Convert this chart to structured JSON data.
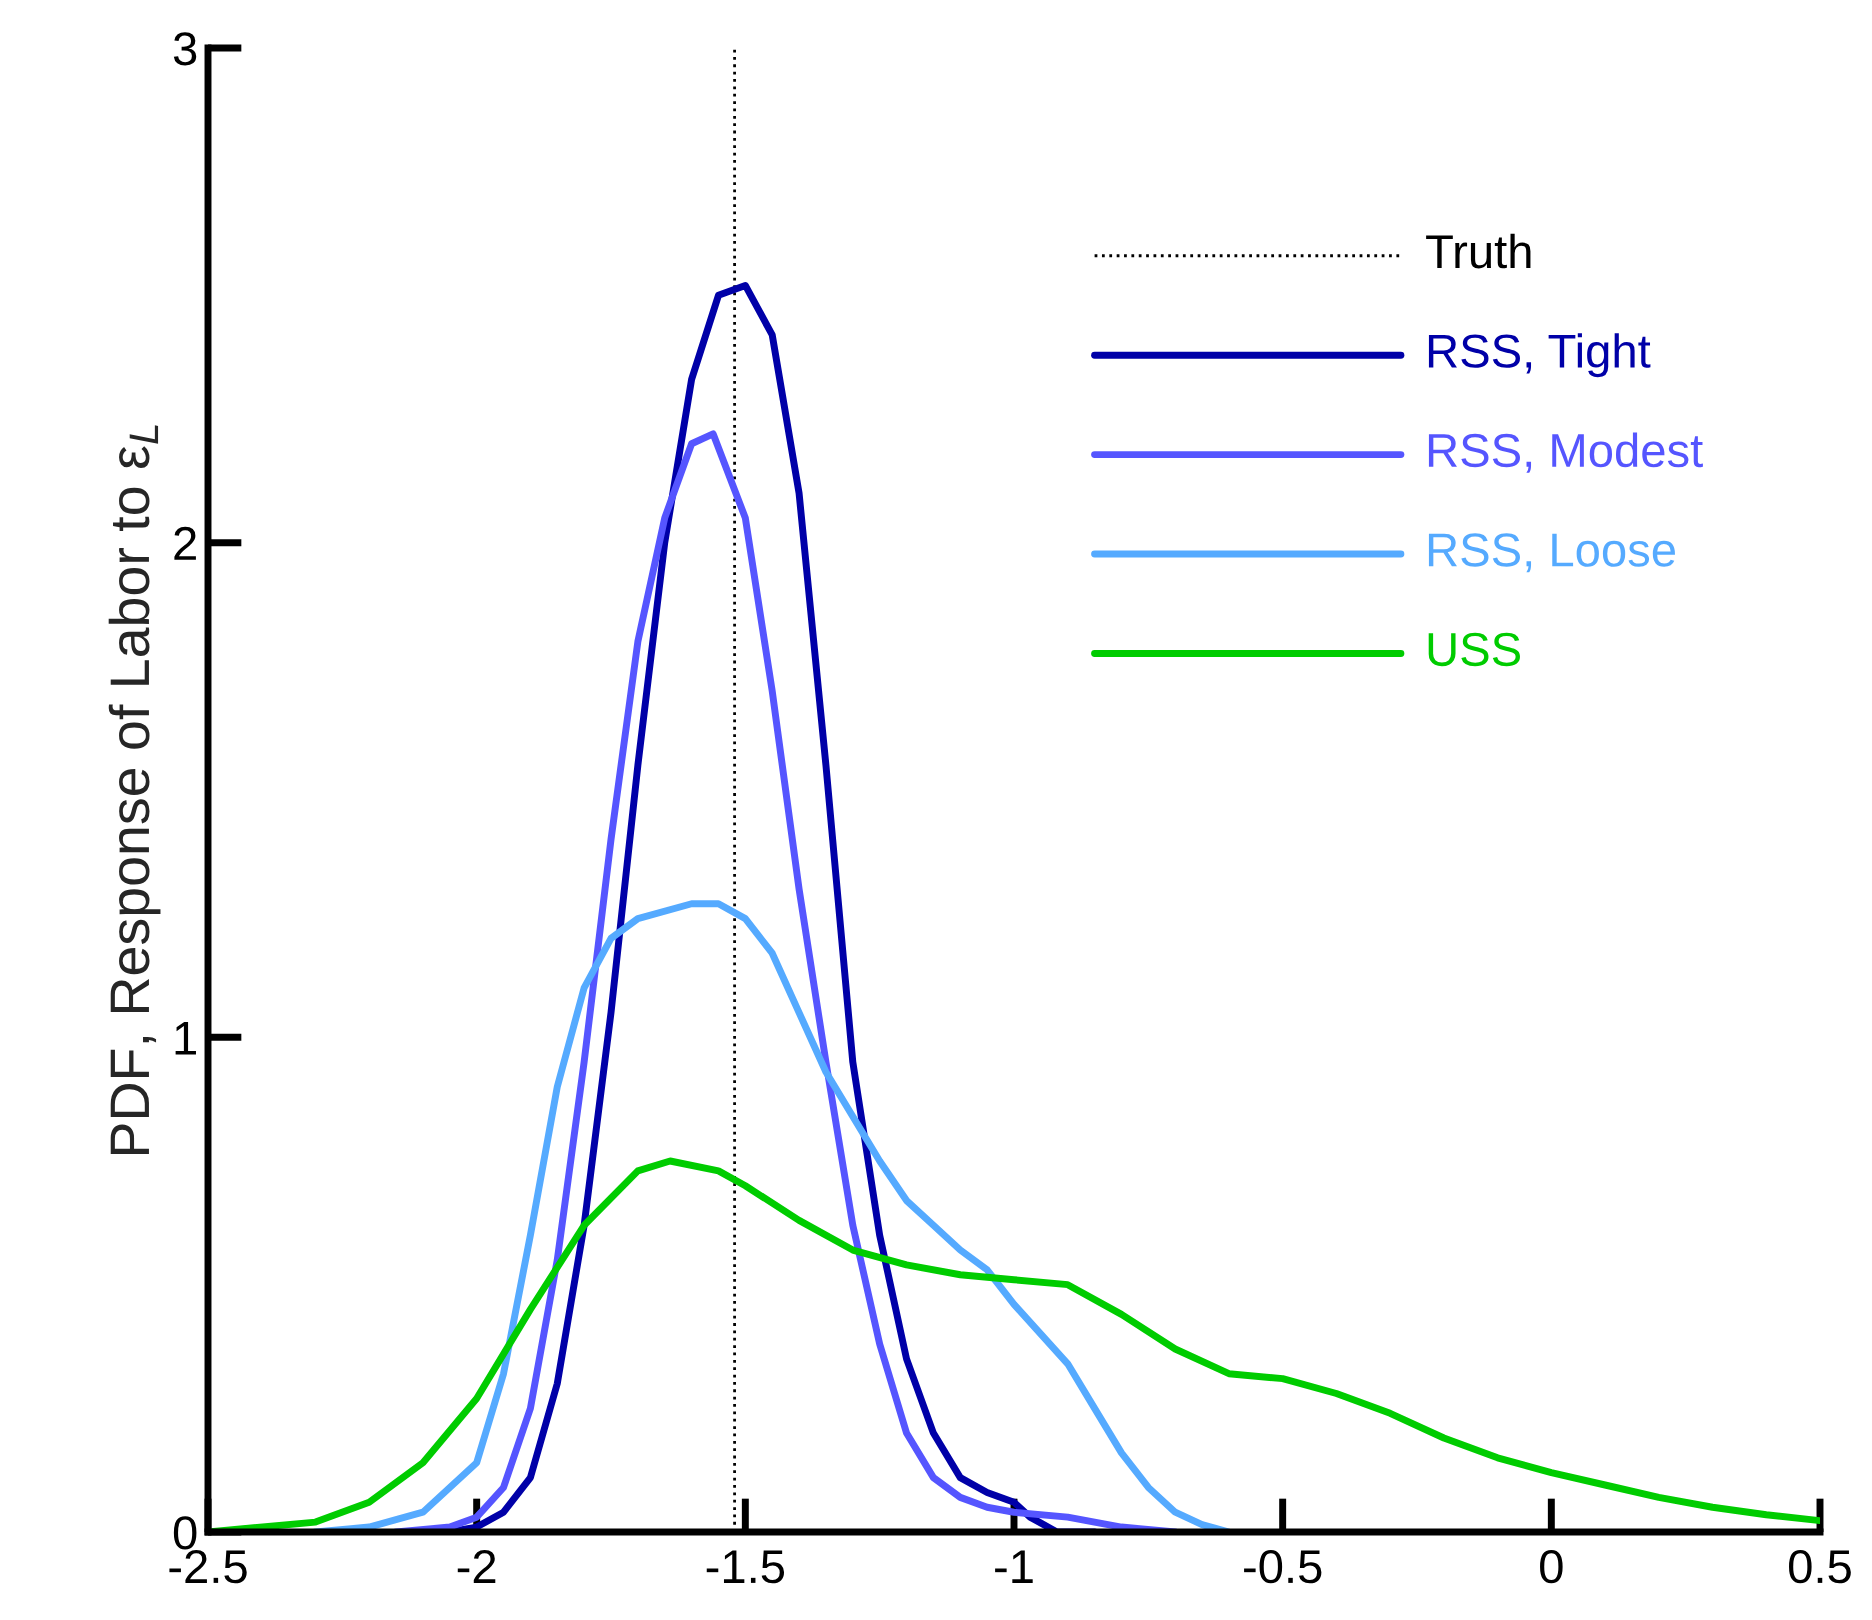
{
  "chart_data": {
    "type": "line",
    "ylabel": "PDF, Response of Labor to ε$_{L}$",
    "xlim": [
      -2.5,
      0.5
    ],
    "xticks": [
      -2.5,
      -2,
      -1.5,
      -1,
      -0.5,
      0,
      0.5
    ],
    "ylim": [
      0,
      3
    ],
    "yticks": [
      0,
      1,
      2,
      3
    ],
    "grid": false,
    "legend": "top right",
    "marker": "none",
    "line_style": "solid",
    "ref_lines": [
      {
        "axis": "x",
        "value": -1.52,
        "label": "Truth",
        "color": "#000000",
        "line_style": "dotted"
      }
    ],
    "series": [
      {
        "name": "RSS, Tight",
        "color": "#0000a8",
        "x": [
          -2.1,
          -2.05,
          -2.0,
          -1.95,
          -1.9,
          -1.85,
          -1.8,
          -1.75,
          -1.7,
          -1.65,
          -1.6,
          -1.55,
          -1.5,
          -1.45,
          -1.4,
          -1.35,
          -1.3,
          -1.25,
          -1.2,
          -1.15,
          -1.1,
          -1.05,
          -1.0,
          -0.97,
          -0.92,
          -0.85
        ],
        "values": [
          0,
          0,
          0.01,
          0.04,
          0.11,
          0.3,
          0.62,
          1.05,
          1.55,
          2.0,
          2.33,
          2.5,
          2.52,
          2.42,
          2.1,
          1.55,
          0.95,
          0.6,
          0.35,
          0.2,
          0.11,
          0.08,
          0.06,
          0.03,
          0.0,
          0
        ]
      },
      {
        "name": "RSS, Modest",
        "color": "#5555ff",
        "x": [
          -2.15,
          -2.05,
          -2.0,
          -1.95,
          -1.9,
          -1.85,
          -1.8,
          -1.75,
          -1.7,
          -1.65,
          -1.6,
          -1.56,
          -1.5,
          -1.45,
          -1.4,
          -1.35,
          -1.3,
          -1.25,
          -1.2,
          -1.15,
          -1.1,
          -1.05,
          -1.0,
          -0.9,
          -0.8,
          -0.7
        ],
        "values": [
          0,
          0.01,
          0.03,
          0.09,
          0.25,
          0.55,
          0.95,
          1.4,
          1.8,
          2.05,
          2.2,
          2.22,
          2.05,
          1.7,
          1.3,
          0.95,
          0.62,
          0.38,
          0.2,
          0.11,
          0.07,
          0.05,
          0.04,
          0.03,
          0.01,
          0
        ]
      },
      {
        "name": "RSS, Loose",
        "color": "#55aaff",
        "x": [
          -2.3,
          -2.2,
          -2.1,
          -2.0,
          -1.95,
          -1.9,
          -1.85,
          -1.8,
          -1.75,
          -1.7,
          -1.6,
          -1.55,
          -1.5,
          -1.45,
          -1.4,
          -1.35,
          -1.3,
          -1.25,
          -1.2,
          -1.15,
          -1.1,
          -1.05,
          -1.0,
          -0.95,
          -0.9,
          -0.85,
          -0.8,
          -0.75,
          -0.7,
          -0.65,
          -0.6
        ],
        "values": [
          0,
          0.01,
          0.04,
          0.14,
          0.32,
          0.6,
          0.9,
          1.1,
          1.2,
          1.24,
          1.27,
          1.27,
          1.24,
          1.17,
          1.05,
          0.93,
          0.84,
          0.75,
          0.67,
          0.62,
          0.57,
          0.53,
          0.46,
          0.4,
          0.34,
          0.25,
          0.16,
          0.09,
          0.04,
          0.015,
          0
        ]
      },
      {
        "name": "USS",
        "color": "#00cc00",
        "x": [
          -2.5,
          -2.3,
          -2.2,
          -2.1,
          -2.0,
          -1.9,
          -1.8,
          -1.7,
          -1.64,
          -1.55,
          -1.5,
          -1.4,
          -1.3,
          -1.2,
          -1.1,
          -1.0,
          -0.9,
          -0.8,
          -0.7,
          -0.6,
          -0.5,
          -0.4,
          -0.3,
          -0.2,
          -0.1,
          0.0,
          0.1,
          0.2,
          0.3,
          0.4,
          0.5
        ],
        "values": [
          0,
          0.02,
          0.06,
          0.14,
          0.27,
          0.45,
          0.62,
          0.73,
          0.75,
          0.73,
          0.7,
          0.63,
          0.57,
          0.54,
          0.52,
          0.51,
          0.5,
          0.44,
          0.37,
          0.32,
          0.31,
          0.28,
          0.24,
          0.19,
          0.15,
          0.12,
          0.095,
          0.07,
          0.05,
          0.035,
          0.023
        ]
      }
    ]
  }
}
